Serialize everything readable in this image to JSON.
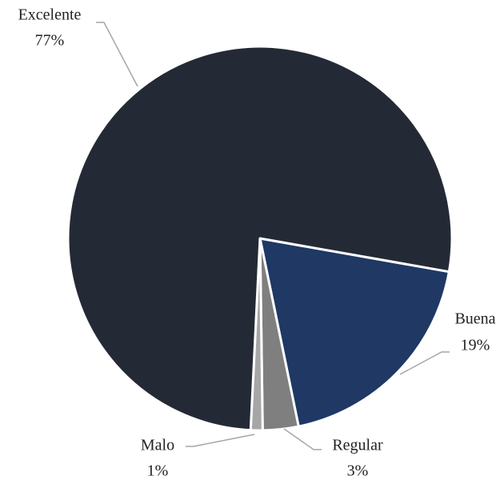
{
  "chart_data": {
    "type": "pie",
    "categories": [
      "Buena",
      "Regular",
      "Malo",
      "Excelente"
    ],
    "values": [
      19,
      3,
      1,
      77
    ],
    "value_labels": [
      "19%",
      "3%",
      "1%",
      "77%"
    ],
    "colors": [
      "#1f3864",
      "#7f7f7f",
      "#a6a6a6",
      "#242a35"
    ]
  }
}
